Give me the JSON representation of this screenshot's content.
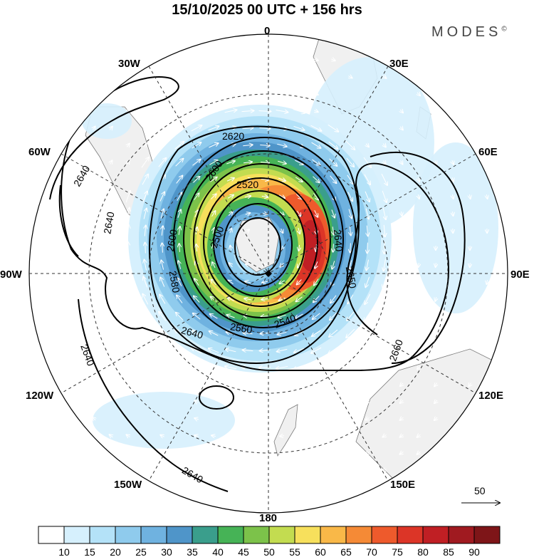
{
  "title": "15/10/2025  00 UTC  + 156 hrs",
  "brand": "MODES",
  "brand_mark": "©",
  "longitude_labels": [
    "0",
    "30E",
    "60E",
    "90E",
    "120E",
    "150E",
    "180",
    "150W",
    "120W",
    "90W",
    "60W",
    "30W"
  ],
  "contour_labels": [
    "2500",
    "2520",
    "2540",
    "2560",
    "2580",
    "2600",
    "2620",
    "2640",
    "2650",
    "2660"
  ],
  "contour_labels_shown": {
    "c2620": "2620",
    "c2600": "2600",
    "c2520": "2520",
    "c2500a": "2500",
    "c2580a": "2580",
    "c2640b": "2640",
    "c2560": "2560",
    "c2540": "2540",
    "c2620b": "2620",
    "c2640c": "2640",
    "c2660": "2660",
    "c2650": "2650",
    "c2640d": "2640",
    "c2640e": "2640",
    "c2640f": "2640",
    "c2640g": "2640",
    "c2600b": "2600"
  },
  "vector_reference": "50",
  "colorbar": {
    "labels": [
      "10",
      "15",
      "20",
      "25",
      "30",
      "35",
      "40",
      "45",
      "50",
      "55",
      "60",
      "65",
      "70",
      "75",
      "80",
      "85",
      "90"
    ],
    "colors": [
      "#ffffff",
      "#d6f0fd",
      "#b4e2f8",
      "#8fcbed",
      "#6fb2e0",
      "#4f95c9",
      "#3a9e8c",
      "#46b356",
      "#7cc24a",
      "#c3dc50",
      "#f7e05c",
      "#f9b848",
      "#f58a36",
      "#ee5a2c",
      "#dc3527",
      "#c01f24",
      "#a01a20",
      "#7e1518"
    ]
  },
  "colors": {
    "land": "#f0f0f0",
    "coast": "#7a7a7a",
    "grid": "#333333"
  }
}
